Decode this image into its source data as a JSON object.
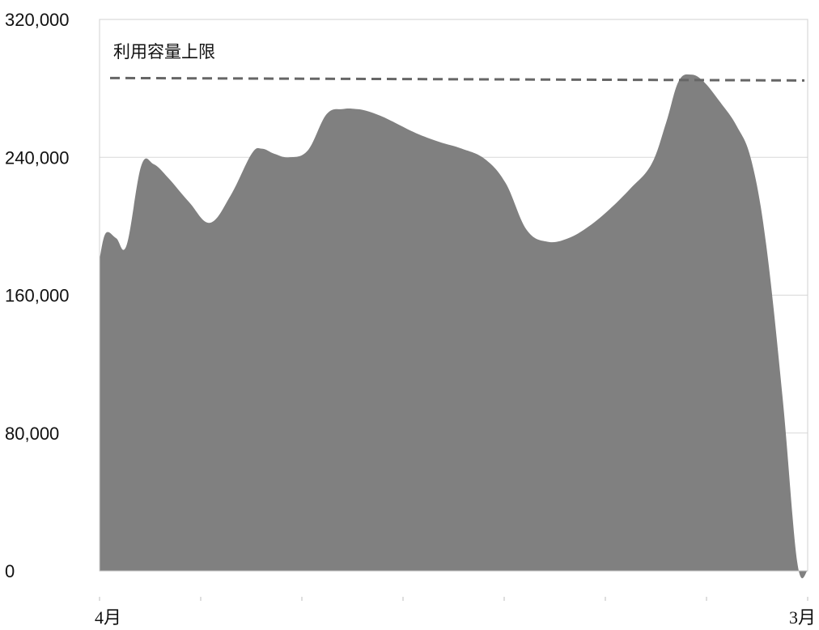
{
  "chart_data": {
    "type": "area",
    "title": "",
    "xlabel": "",
    "ylabel": "",
    "ylim": [
      0,
      320000
    ],
    "yticks": [
      0,
      80000,
      160000,
      240000,
      320000
    ],
    "ytick_labels": [
      "0",
      "80,000",
      "160,000",
      "240,000",
      "320,000"
    ],
    "x_start_label": "4月",
    "x_end_label": "3月",
    "x_minor_tick_count": 8,
    "grid": "horizontal",
    "legend": "none",
    "fill_color": "#808080",
    "limit_line": {
      "label": "利用容量上限",
      "value": 286000,
      "style": "dashed",
      "color": "#666666"
    },
    "series": [
      {
        "x": [
          0,
          0.3,
          0.8,
          1.3,
          2,
          2.6,
          3.3,
          4.3,
          5.3,
          6.3,
          7.3,
          7.8,
          8.4,
          9.1,
          10,
          10.9,
          11.7,
          12.3,
          12.8,
          13.5,
          14.2,
          15.2,
          16.3,
          17.4,
          18.5,
          19.5,
          20.5,
          21.5,
          22.5,
          23.5,
          24.5,
          25.5,
          26.5,
          27.2,
          27.8,
          28.4,
          29,
          29.8,
          30.6,
          31.3,
          32,
          32.8,
          33.5,
          34
        ],
        "y": [
          181000,
          196000,
          193000,
          189000,
          235000,
          236000,
          228000,
          214000,
          202000,
          218000,
          242000,
          245000,
          242000,
          240000,
          244000,
          265000,
          268000,
          268000,
          267000,
          264000,
          260000,
          254000,
          249000,
          245000,
          239000,
          225000,
          198000,
          191000,
          193000,
          200000,
          210000,
          222000,
          236000,
          260000,
          284000,
          288000,
          284000,
          272000,
          258000,
          238000,
          190000,
          100000,
          5000,
          0
        ]
      }
    ]
  }
}
